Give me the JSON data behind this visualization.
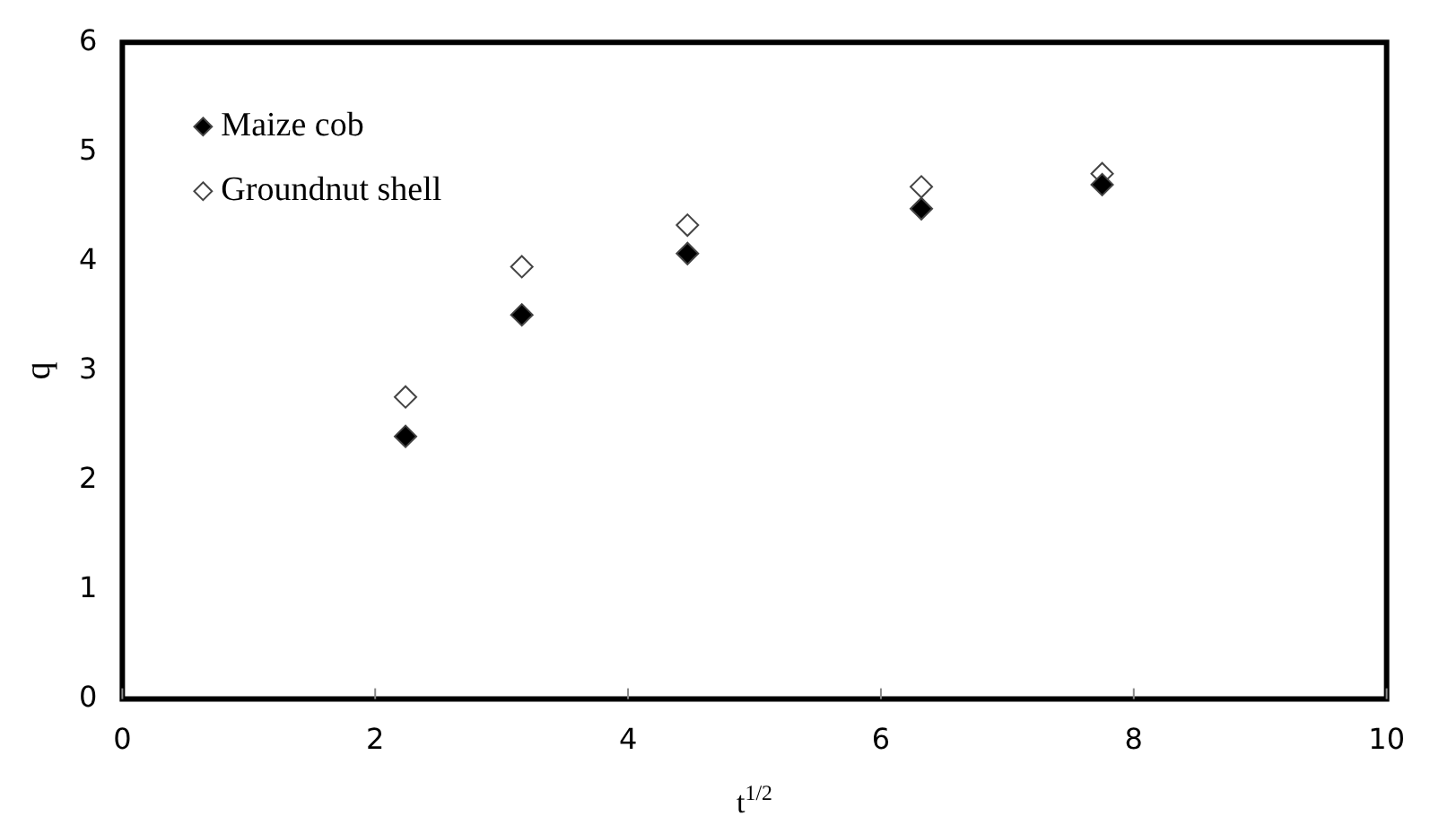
{
  "chart_data": {
    "type": "scatter",
    "xlabel": "t$^{1/2}$",
    "ylabel": "q",
    "x": [
      2.24,
      3.16,
      4.47,
      6.32,
      7.75
    ],
    "series": [
      {
        "name": "Maize cob",
        "color": "#000000",
        "values": [
          2.4,
          3.51,
          4.07,
          4.48,
          4.7
        ]
      },
      {
        "name": "Groundnut shell",
        "color": "#ffffff",
        "values": [
          2.76,
          3.95,
          4.33,
          4.68,
          4.8
        ]
      }
    ],
    "marker": "diamond",
    "xlim": [
      0,
      10
    ],
    "xticks": [
      0,
      2,
      4,
      6,
      8,
      10
    ],
    "ylim": [
      0,
      6
    ],
    "yticks": [
      0,
      1,
      2,
      3,
      4,
      5,
      6
    ],
    "grid": false,
    "legend": "top left"
  }
}
